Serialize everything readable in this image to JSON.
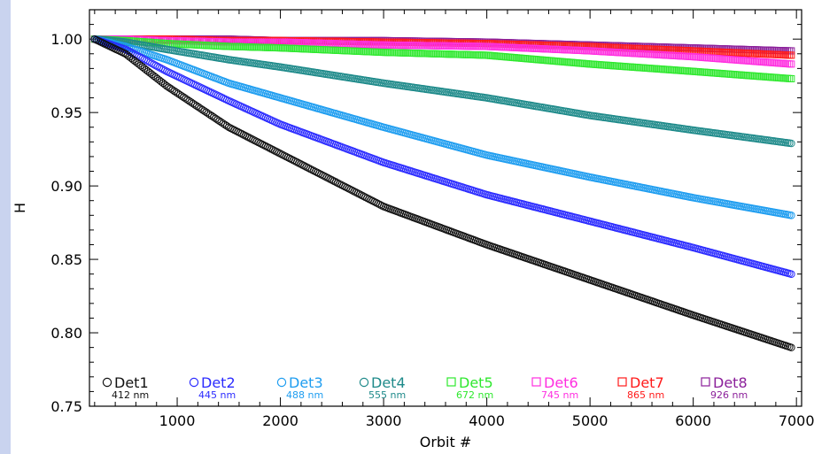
{
  "chart_data": {
    "type": "scatter",
    "xlabel": "Orbit #",
    "ylabel": "H",
    "xlim": [
      150,
      7050
    ],
    "ylim": [
      0.75,
      1.02
    ],
    "x_ticks": [
      1000,
      2000,
      3000,
      4000,
      5000,
      6000,
      7000
    ],
    "y_ticks": [
      0.75,
      0.8,
      0.85,
      0.9,
      0.95,
      1.0
    ],
    "x_tick_labels": [
      "1000",
      "2000",
      "3000",
      "4000",
      "5000",
      "6000",
      "7000"
    ],
    "y_tick_labels": [
      "0.75",
      "0.80",
      "0.85",
      "0.90",
      "0.95",
      "1.00"
    ],
    "grid": false,
    "legend_position": "bottom",
    "series": [
      {
        "name": "Det1",
        "wavelength": "412 nm",
        "color": "#111111",
        "marker": "circle",
        "x": [
          200,
          500,
          900,
          1500,
          2000,
          3000,
          4000,
          5000,
          6000,
          6950
        ],
        "y": [
          1.0,
          0.99,
          0.968,
          0.94,
          0.922,
          0.886,
          0.86,
          0.836,
          0.812,
          0.79
        ]
      },
      {
        "name": "Det2",
        "wavelength": "445 nm",
        "color": "#2b2bff",
        "marker": "circle",
        "x": [
          200,
          500,
          900,
          1500,
          2000,
          3000,
          4000,
          5000,
          6000,
          6950
        ],
        "y": [
          1.0,
          0.993,
          0.978,
          0.958,
          0.942,
          0.916,
          0.894,
          0.876,
          0.858,
          0.84
        ]
      },
      {
        "name": "Det3",
        "wavelength": "488 nm",
        "color": "#1e9df0",
        "marker": "circle",
        "x": [
          200,
          500,
          900,
          1500,
          2000,
          3000,
          4000,
          5000,
          6000,
          6950
        ],
        "y": [
          1.0,
          0.995,
          0.986,
          0.97,
          0.96,
          0.94,
          0.921,
          0.906,
          0.892,
          0.88
        ]
      },
      {
        "name": "Det4",
        "wavelength": "555 nm",
        "color": "#1e8a8a",
        "marker": "circle",
        "x": [
          200,
          500,
          900,
          1500,
          2000,
          3000,
          4000,
          5000,
          6000,
          6950
        ],
        "y": [
          1.0,
          0.998,
          0.993,
          0.986,
          0.981,
          0.97,
          0.96,
          0.948,
          0.938,
          0.929
        ]
      },
      {
        "name": "Det5",
        "wavelength": "672 nm",
        "color": "#2ee82e",
        "marker": "square",
        "x": [
          200,
          500,
          900,
          1500,
          2000,
          3000,
          4000,
          5000,
          6000,
          6950
        ],
        "y": [
          1.0,
          0.999,
          0.997,
          0.995,
          0.994,
          0.991,
          0.989,
          0.983,
          0.978,
          0.973
        ]
      },
      {
        "name": "Det6",
        "wavelength": "745 nm",
        "color": "#ff2ee0",
        "marker": "square",
        "x": [
          200,
          500,
          900,
          1500,
          2000,
          3000,
          4000,
          5000,
          6000,
          6950
        ],
        "y": [
          1.0,
          1.0,
          0.999,
          0.998,
          0.998,
          0.996,
          0.995,
          0.992,
          0.988,
          0.983
        ]
      },
      {
        "name": "Det7",
        "wavelength": "865 nm",
        "color": "#ff1a1a",
        "marker": "square",
        "x": [
          200,
          500,
          900,
          1500,
          2000,
          3000,
          4000,
          5000,
          6000,
          6950
        ],
        "y": [
          1.0,
          1.0,
          1.0,
          0.999,
          0.999,
          0.998,
          0.997,
          0.995,
          0.992,
          0.989
        ]
      },
      {
        "name": "Det8",
        "wavelength": "926 nm",
        "color": "#8b1f9a",
        "marker": "square",
        "x": [
          200,
          500,
          900,
          1500,
          2000,
          3000,
          4000,
          5000,
          6000,
          6950
        ],
        "y": [
          1.0,
          1.0,
          1.0,
          1.0,
          0.999,
          0.999,
          0.998,
          0.996,
          0.994,
          0.992
        ]
      }
    ]
  }
}
